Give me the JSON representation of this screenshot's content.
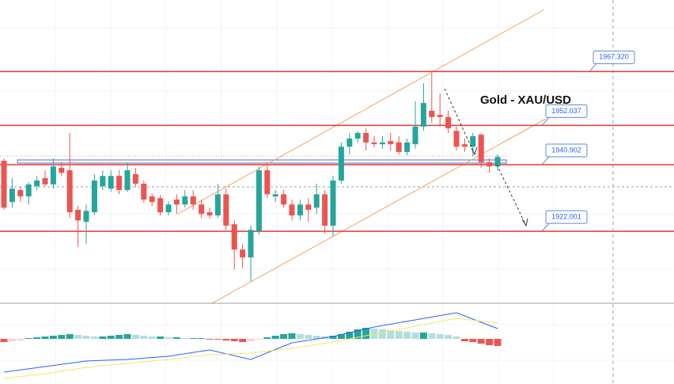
{
  "chart_data": {
    "type": "candlestick",
    "title": "Gold - XAU/USD",
    "ylim": [
      1901.6,
      1987.6
    ],
    "up_color": "#26a69a",
    "down_color": "#ef5350",
    "level_color": "#e53935",
    "levels": [
      {
        "value": 1967.32,
        "label": "1967.320"
      },
      1952.037,
      1940.902,
      1922.001
    ],
    "open": [
      1942.0,
      1930.3,
      1933.7,
      1931.9,
      1934.8,
      1937.1,
      1935.3,
      1940.0,
      1939.3,
      1928.1,
      1924.7,
      1927.4,
      1934.8,
      1934.1,
      1937.7,
      1933.7,
      1938.2,
      1935.5,
      1931.9,
      1931.4,
      1927.4,
      1931.0,
      1929.6,
      1931.9,
      1929.6,
      1927.4,
      1926.5,
      1932.5,
      1924.0,
      1916.8,
      1914.6,
      1922.0,
      1939.3,
      1931.9,
      1932.5,
      1929.6,
      1926.5,
      1929.6,
      1928.7,
      1932.5,
      1923.6,
      1936.4,
      1946.0,
      1948.3,
      1949.9,
      1947.2,
      1946.7,
      1947.6,
      1947.2,
      1944.5,
      1946.7,
      1951.7,
      1956.2,
      1955.0,
      1954.4,
      1950.5,
      1946.7,
      1946.0,
      1949.4,
      1941.6,
      1940.4
    ],
    "high": [
      1942.7,
      1937.1,
      1934.6,
      1935.9,
      1937.7,
      1939.3,
      1942.7,
      1941.6,
      1949.9,
      1929.2,
      1929.6,
      1938.2,
      1939.3,
      1939.3,
      1939.3,
      1941.6,
      1940.0,
      1936.4,
      1932.8,
      1932.3,
      1930.5,
      1932.5,
      1933.7,
      1933.7,
      1931.0,
      1928.7,
      1935.5,
      1934.1,
      1925.1,
      1918.4,
      1923.6,
      1940.4,
      1941.6,
      1933.7,
      1933.7,
      1931.0,
      1931.0,
      1931.4,
      1935.5,
      1933.7,
      1937.7,
      1947.2,
      1949.9,
      1950.5,
      1951.2,
      1949.0,
      1949.0,
      1949.9,
      1949.0,
      1948.3,
      1958.9,
      1964.0,
      1966.9,
      1961.1,
      1956.2,
      1951.7,
      1948.3,
      1949.9,
      1949.9,
      1942.7,
      1943.8
    ],
    "low": [
      1928.1,
      1928.7,
      1930.3,
      1929.6,
      1933.7,
      1934.6,
      1934.1,
      1937.7,
      1925.8,
      1917.5,
      1918.4,
      1926.5,
      1933.7,
      1933.2,
      1932.5,
      1933.2,
      1934.6,
      1930.1,
      1929.2,
      1926.5,
      1926.5,
      1926.9,
      1928.7,
      1928.1,
      1925.8,
      1925.6,
      1925.8,
      1922.4,
      1911.2,
      1911.6,
      1907.8,
      1921.1,
      1931.4,
      1930.3,
      1928.7,
      1925.1,
      1925.1,
      1924.7,
      1926.9,
      1921.3,
      1920.6,
      1935.5,
      1943.8,
      1947.2,
      1944.9,
      1945.8,
      1945.4,
      1944.9,
      1943.8,
      1943.6,
      1945.4,
      1950.5,
      1952.8,
      1951.7,
      1949.9,
      1944.9,
      1944.5,
      1943.1,
      1940.0,
      1938.6,
      1939.3
    ],
    "close": [
      1928.7,
      1934.1,
      1931.9,
      1935.3,
      1936.4,
      1935.3,
      1940.4,
      1938.6,
      1927.4,
      1925.1,
      1927.8,
      1936.4,
      1937.7,
      1937.7,
      1933.7,
      1939.3,
      1935.5,
      1931.0,
      1930.3,
      1927.4,
      1929.6,
      1929.6,
      1931.9,
      1929.6,
      1926.9,
      1926.5,
      1932.5,
      1923.6,
      1916.8,
      1914.6,
      1922.4,
      1939.3,
      1932.5,
      1932.5,
      1929.6,
      1926.5,
      1929.6,
      1928.1,
      1932.5,
      1923.6,
      1936.4,
      1946.0,
      1948.3,
      1949.9,
      1947.2,
      1946.7,
      1947.2,
      1946.7,
      1944.5,
      1947.2,
      1951.7,
      1958.4,
      1954.4,
      1954.4,
      1951.2,
      1946.0,
      1946.0,
      1949.0,
      1941.6,
      1940.4,
      1943.1
    ],
    "macd": {
      "ylim": [
        -54,
        40
      ],
      "histogram": [
        -4,
        -3,
        -2,
        1,
        2,
        3,
        4,
        5,
        6,
        5,
        4,
        3,
        3,
        4,
        5,
        6,
        5,
        4,
        3,
        3,
        2,
        2,
        1,
        1,
        1,
        -1,
        -1,
        -2,
        -3,
        -4,
        -3,
        -1,
        2,
        4,
        6,
        7,
        6,
        5,
        4,
        3,
        4,
        6,
        9,
        12,
        14,
        13,
        12,
        11,
        10,
        9,
        8,
        8,
        7,
        6,
        5,
        3,
        -3,
        -4,
        -6,
        -8,
        -9
      ],
      "hist_colors": {
        "up": "#26a69a",
        "up_fading": "#b2dfdb",
        "down": "#ef5350",
        "down_fading": "#ffcdd2"
      },
      "x": [
        0,
        5,
        10,
        15,
        20,
        25,
        30,
        35,
        40,
        45,
        50,
        55,
        60
      ],
      "series": [
        {
          "color": "#2962ff",
          "values": [
            -42,
            -35,
            -28,
            -26,
            -22,
            -14,
            -26,
            -5,
            3,
            15,
            24,
            33,
            13
          ]
        },
        {
          "color": "#f5e663",
          "values": [
            -50,
            -44,
            -36,
            -31,
            -26,
            -20,
            -18,
            -12,
            -4,
            6,
            16,
            26,
            20
          ]
        }
      ]
    }
  }
}
